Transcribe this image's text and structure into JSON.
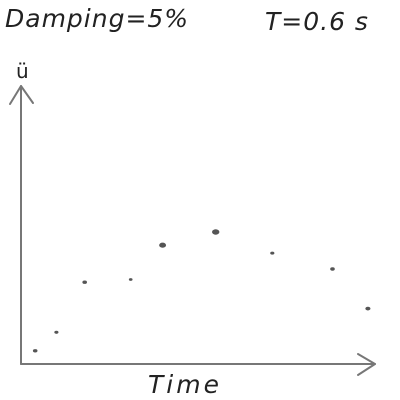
{
  "chart_data": {
    "type": "scatter",
    "title_left": "Damping=5%",
    "title_right": "T=0.6 s",
    "xlabel": "Time",
    "ylabel": "ü",
    "xlim": [
      0,
      10
    ],
    "ylim": [
      0,
      10
    ],
    "grid": false,
    "legend": "none",
    "x": [
      0.4,
      1.0,
      1.8,
      3.1,
      4.0,
      5.5,
      7.1,
      8.8,
      9.8
    ],
    "y": [
      0.5,
      1.2,
      3.1,
      3.2,
      4.5,
      5.0,
      4.2,
      3.6,
      2.1
    ],
    "point_color": "#555555",
    "axis_color": "#777777"
  }
}
